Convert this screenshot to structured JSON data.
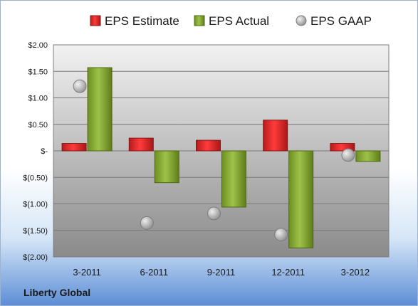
{
  "chart_data": {
    "type": "bar",
    "categories": [
      "3-2011",
      "6-2011",
      "9-2011",
      "12-2011",
      "3-2012"
    ],
    "series": [
      {
        "name": "EPS Estimate",
        "kind": "bar",
        "color": "#d42a2a",
        "values": [
          0.14,
          0.24,
          0.2,
          0.58,
          0.14
        ]
      },
      {
        "name": "EPS Actual",
        "kind": "bar",
        "color": "#8cb038",
        "values": [
          1.57,
          -0.6,
          -1.06,
          -1.83,
          -0.2
        ]
      },
      {
        "name": "EPS GAAP",
        "kind": "marker",
        "color": "#b0b0b0",
        "values": [
          1.22,
          -1.36,
          -1.18,
          -1.58,
          -0.08
        ]
      }
    ],
    "ylim": [
      -2.0,
      2.0
    ],
    "yticks": [
      2.0,
      1.5,
      1.0,
      0.5,
      0,
      -0.5,
      -1.0,
      -1.5,
      -2.0
    ],
    "ytick_labels": [
      "$2.00",
      "$1.50",
      "$1.00",
      "$0.50",
      "$-",
      "$(0.50)",
      "$(1.00)",
      "$(1.50)",
      "$(2.00)"
    ],
    "legend_position": "top",
    "grid": true
  },
  "company": "Liberty Global"
}
